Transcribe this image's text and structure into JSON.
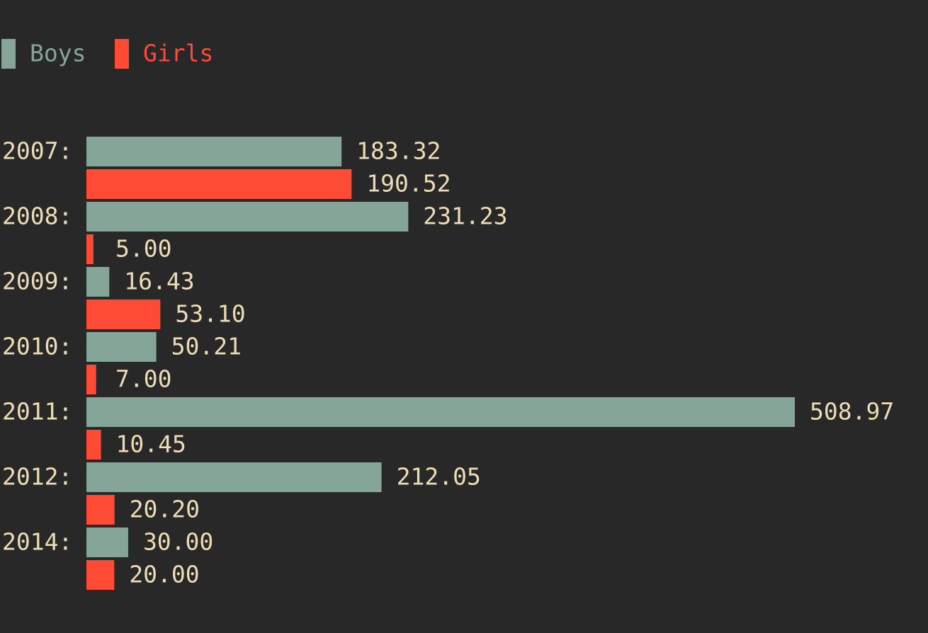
{
  "chart_data": {
    "type": "bar",
    "orientation": "horizontal",
    "categories": [
      "2007",
      "2008",
      "2009",
      "2010",
      "2011",
      "2012",
      "2014"
    ],
    "category_suffix": ":",
    "series": [
      {
        "name": "Boys",
        "color": "#84a597",
        "values": [
          183.32,
          231.23,
          16.43,
          50.21,
          508.97,
          212.05,
          30.0
        ],
        "labels": [
          "183.32",
          "231.23",
          "16.43",
          "50.21",
          "508.97",
          "212.05",
          "30.00"
        ]
      },
      {
        "name": "Girls",
        "color": "#fd4b36",
        "values": [
          190.52,
          5.0,
          53.1,
          7.0,
          10.45,
          20.2,
          20.0
        ],
        "labels": [
          "190.52",
          "5.00",
          "53.10",
          "7.00",
          "10.45",
          "20.20",
          "20.00"
        ]
      }
    ],
    "title": "",
    "xlabel": "",
    "ylabel": "",
    "xlim": [
      0,
      508.97
    ],
    "grid": false,
    "legend": "top-left",
    "background": "#282828",
    "text_color": "#eddcb6"
  }
}
